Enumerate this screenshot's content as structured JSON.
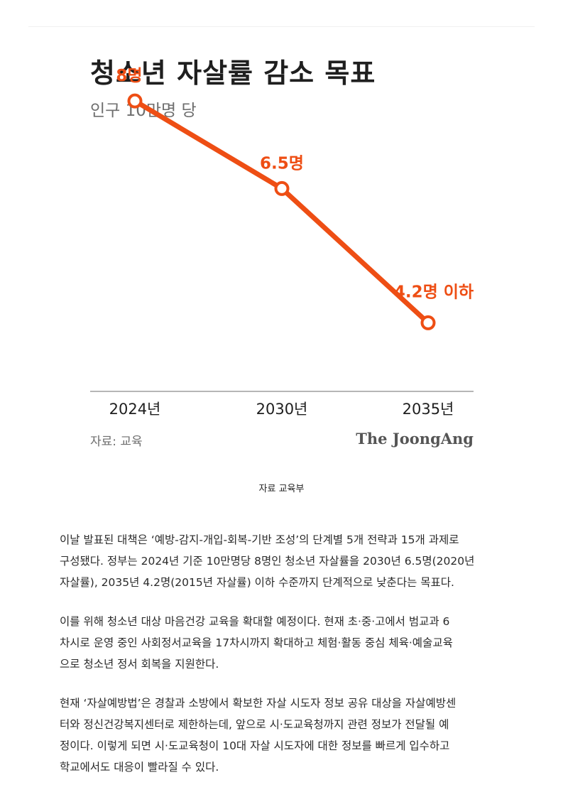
{
  "figure": {
    "title": "청소년 자살률 감소 목표",
    "subtitle": "인구 10만명 당",
    "source": "자료: 교육",
    "brand": "The JoongAng"
  },
  "colors": {
    "accent": "#ee4e14",
    "axis": "#8a8a8a"
  },
  "chart_data": {
    "type": "line",
    "title": "청소년 자살률 감소 목표",
    "subtitle": "인구 10만명 당",
    "categories": [
      "2024년",
      "2030년",
      "2035년"
    ],
    "series": [
      {
        "values": [
          8,
          6.5,
          4.2
        ],
        "labels": [
          "8명",
          "6.5명",
          "4.2명 이하"
        ]
      }
    ],
    "ylim": [
      3.0,
      9.0
    ],
    "grid": false,
    "legend": "none"
  },
  "caption": "자료 교육부",
  "article": {
    "paragraphs": [
      [
        "이날 발표된 대책은 ‘예방-감지-개입-회복-기반 조성’의 단계별 5개 전략과 15개 과제로",
        "구성됐다. 정부는 2024년 기준 10만명당 8명인 청소년 자살률을 2030년 6.5명(2020년",
        "자살률), 2035년 4.2명(2015년 자살률) 이하 수준까지 단계적으로 낮춘다는 목표다."
      ],
      [
        "이를 위해 청소년 대상 마음건강 교육을 확대할 예정이다. 현재 초·중·고에서 범교과 6",
        "차시로 운영 중인 사회정서교육을 17차시까지 확대하고 체험·활동 중심 체육·예술교육",
        "으로 청소년 정서 회복을 지원한다."
      ],
      [
        "현재 ‘자살예방법’은 경찰과 소방에서 확보한 자살 시도자 정보 공유 대상을 자살예방센",
        "터와 정신건강복지센터로 제한하는데, 앞으로 시·도교육청까지 관련 정보가 전달될 예",
        "정이다. 이렇게 되면 시·도교육청이 10대 자살 시도자에 대한 정보를 빠르게 입수하고",
        "학교에서도 대응이 빨라질 수 있다."
      ]
    ]
  }
}
